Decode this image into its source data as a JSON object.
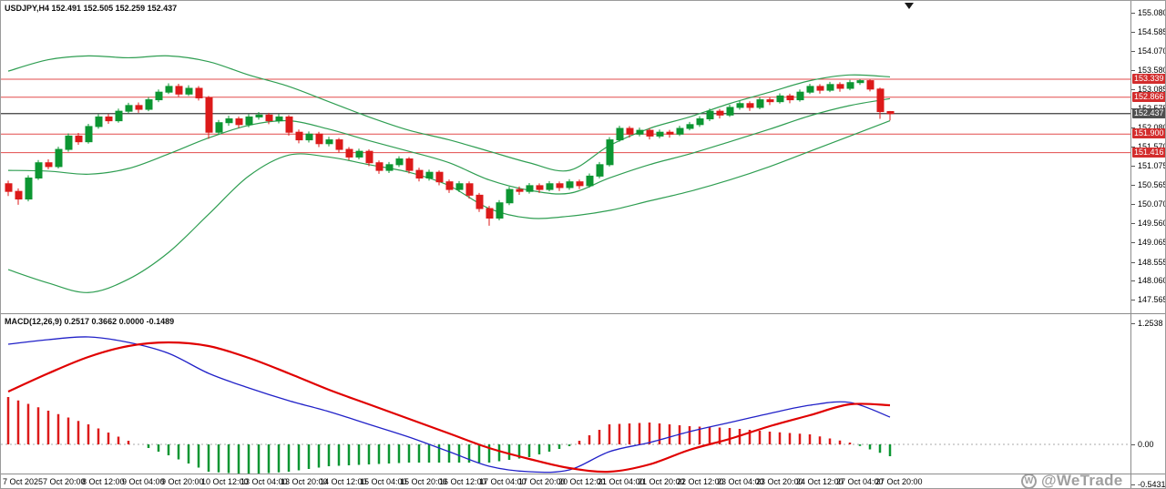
{
  "symbol_bar": {
    "symbol": "USDJPY",
    "timeframe": "H4",
    "open": "152.491",
    "high": "152.505",
    "low": "152.259",
    "close": "152.437",
    "text": "USDJPY,H4 152.491 152.505 152.259 152.437"
  },
  "macd_bar": {
    "indicator": "MACD",
    "params": "12,26,9",
    "values": [
      "0.2517",
      "0.3662",
      "0.0000",
      "-0.1489"
    ],
    "text": "MACD(12,26,9) 0.2517 0.3662 0.0000 -0.1489"
  },
  "watermark": {
    "logo_letter": "W",
    "text": "@WeTrade"
  },
  "colors": {
    "background": "#ffffff",
    "foreground": "#000000",
    "separator": "#8c8c8c",
    "bull": "#0c9632",
    "bear": "#dc1a1a",
    "bollinger": "#2f9e52",
    "level_line": "#e24b4b",
    "level_label_bg": "#d32d2d",
    "current_line": "#3c3c3c",
    "current_label_bg": "#4f4f4f",
    "macd_line": "#2121c8",
    "signal_line": "#e00000",
    "hist_pos": "#dc1a1a",
    "hist_neg": "#0c9632",
    "zero_line": "#aaaaaa",
    "watermark": "#8f8f8f"
  },
  "chart_data": [
    {
      "type": "candlestick",
      "title": "USDJPY,H4",
      "ylim": [
        147.565,
        155.08
      ],
      "y_ticks": [
        "155.080",
        "154.585",
        "154.070",
        "153.580",
        "153.085",
        "152.575",
        "152.080",
        "151.570",
        "151.075",
        "150.565",
        "150.070",
        "149.560",
        "149.065",
        "148.555",
        "148.060",
        "147.565"
      ],
      "x_tick_labels": [
        "7 Oct 2025",
        "7 Oct 20:00",
        "8 Oct 12:00",
        "9 Oct 04:00",
        "9 Oct 20:00",
        "10 Oct 12:00",
        "13 Oct 04:00",
        "13 Oct 20:00",
        "14 Oct 12:00",
        "15 Oct 04:00",
        "15 Oct 20:00",
        "16 Oct 12:00",
        "17 Oct 04:00",
        "17 Oct 20:00",
        "20 Oct 12:00",
        "21 Oct 04:00",
        "21 Oct 20:00",
        "22 Oct 12:00",
        "23 Oct 04:00",
        "23 Oct 20:00",
        "24 Oct 12:00",
        "27 Oct 04:00",
        "27 Oct 20:00"
      ],
      "candles": [
        [
          150.6,
          150.68,
          150.28,
          150.4
        ],
        [
          150.4,
          150.48,
          150.05,
          150.2
        ],
        [
          150.2,
          150.82,
          150.14,
          150.75
        ],
        [
          150.75,
          151.22,
          150.7,
          151.15
        ],
        [
          151.15,
          151.24,
          150.98,
          151.05
        ],
        [
          151.05,
          151.57,
          151.0,
          151.5
        ],
        [
          151.5,
          151.92,
          151.44,
          151.85
        ],
        [
          151.85,
          151.93,
          151.62,
          151.7
        ],
        [
          151.7,
          152.17,
          151.65,
          152.1
        ],
        [
          152.1,
          152.42,
          152.04,
          152.35
        ],
        [
          152.35,
          152.43,
          152.17,
          152.25
        ],
        [
          152.25,
          152.57,
          152.2,
          152.5
        ],
        [
          152.5,
          152.72,
          152.44,
          152.65
        ],
        [
          152.65,
          152.73,
          152.46,
          152.55
        ],
        [
          152.55,
          152.87,
          152.5,
          152.8
        ],
        [
          152.8,
          153.07,
          152.74,
          153.0
        ],
        [
          153.0,
          153.23,
          152.95,
          153.15
        ],
        [
          153.15,
          153.22,
          152.88,
          152.95
        ],
        [
          152.95,
          153.18,
          152.9,
          153.1
        ],
        [
          153.1,
          153.16,
          152.78,
          152.85
        ],
        [
          152.85,
          152.9,
          151.78,
          151.95
        ],
        [
          151.95,
          152.27,
          151.88,
          152.2
        ],
        [
          152.2,
          152.38,
          152.12,
          152.3
        ],
        [
          152.3,
          152.36,
          152.06,
          152.15
        ],
        [
          152.15,
          152.42,
          152.08,
          152.35
        ],
        [
          152.35,
          152.48,
          152.28,
          152.4
        ],
        [
          152.4,
          152.46,
          152.16,
          152.25
        ],
        [
          152.25,
          152.43,
          152.18,
          152.35
        ],
        [
          152.35,
          152.4,
          151.86,
          151.95
        ],
        [
          151.95,
          152.02,
          151.66,
          151.75
        ],
        [
          151.75,
          151.97,
          151.68,
          151.9
        ],
        [
          151.9,
          151.96,
          151.56,
          151.65
        ],
        [
          151.65,
          151.83,
          151.58,
          151.75
        ],
        [
          151.75,
          151.8,
          151.42,
          151.5
        ],
        [
          151.5,
          151.56,
          151.22,
          151.3
        ],
        [
          151.3,
          151.52,
          151.24,
          151.45
        ],
        [
          151.45,
          151.5,
          151.06,
          151.15
        ],
        [
          151.15,
          151.21,
          150.86,
          150.95
        ],
        [
          150.95,
          151.17,
          150.88,
          151.1
        ],
        [
          151.1,
          151.32,
          151.04,
          151.25
        ],
        [
          151.25,
          151.3,
          150.87,
          150.95
        ],
        [
          150.95,
          151.02,
          150.66,
          150.75
        ],
        [
          150.75,
          150.97,
          150.68,
          150.9
        ],
        [
          150.9,
          150.95,
          150.56,
          150.65
        ],
        [
          150.65,
          150.71,
          150.36,
          150.45
        ],
        [
          150.45,
          150.67,
          150.38,
          150.6
        ],
        [
          150.6,
          150.66,
          150.21,
          150.3
        ],
        [
          150.3,
          150.36,
          149.86,
          149.95
        ],
        [
          149.95,
          150.02,
          149.5,
          149.7
        ],
        [
          149.7,
          150.17,
          149.64,
          150.1
        ],
        [
          150.1,
          150.52,
          150.04,
          150.45
        ],
        [
          150.45,
          150.53,
          150.31,
          150.4
        ],
        [
          150.4,
          150.62,
          150.34,
          150.55
        ],
        [
          150.55,
          150.61,
          150.36,
          150.45
        ],
        [
          150.45,
          150.67,
          150.4,
          150.6
        ],
        [
          150.6,
          150.66,
          150.41,
          150.5
        ],
        [
          150.5,
          150.72,
          150.44,
          150.65
        ],
        [
          150.65,
          150.71,
          150.46,
          150.55
        ],
        [
          150.55,
          150.87,
          150.5,
          150.8
        ],
        [
          150.8,
          151.17,
          150.74,
          151.1
        ],
        [
          151.1,
          151.82,
          151.05,
          151.75
        ],
        [
          151.75,
          152.12,
          151.7,
          152.05
        ],
        [
          152.05,
          152.11,
          151.81,
          151.9
        ],
        [
          151.9,
          152.07,
          151.84,
          152.0
        ],
        [
          152.0,
          152.06,
          151.76,
          151.85
        ],
        [
          151.85,
          152.02,
          151.79,
          151.95
        ],
        [
          151.95,
          152.01,
          151.81,
          151.9
        ],
        [
          151.9,
          152.12,
          151.85,
          152.05
        ],
        [
          152.05,
          152.22,
          152.0,
          152.15
        ],
        [
          152.15,
          152.37,
          152.09,
          152.3
        ],
        [
          152.3,
          152.57,
          152.24,
          152.5
        ],
        [
          152.5,
          152.56,
          152.31,
          152.4
        ],
        [
          152.4,
          152.67,
          152.35,
          152.6
        ],
        [
          152.6,
          152.77,
          152.54,
          152.7
        ],
        [
          152.7,
          152.76,
          152.51,
          152.6
        ],
        [
          152.6,
          152.87,
          152.55,
          152.8
        ],
        [
          152.8,
          152.86,
          152.66,
          152.75
        ],
        [
          152.75,
          152.97,
          152.7,
          152.9
        ],
        [
          152.9,
          152.96,
          152.71,
          152.8
        ],
        [
          152.8,
          153.07,
          152.75,
          153.0
        ],
        [
          153.0,
          153.22,
          152.95,
          153.15
        ],
        [
          153.15,
          153.21,
          152.96,
          153.05
        ],
        [
          153.05,
          153.27,
          153.0,
          153.2
        ],
        [
          153.2,
          153.26,
          153.01,
          153.1
        ],
        [
          153.1,
          153.32,
          153.05,
          153.25
        ],
        [
          153.25,
          153.34,
          153.19,
          153.3
        ],
        [
          153.3,
          153.33,
          153.02,
          153.08
        ],
        [
          153.08,
          153.12,
          152.3,
          152.49
        ],
        [
          152.491,
          152.505,
          152.259,
          152.437
        ]
      ],
      "overlays": {
        "bollinger_bands": {
          "sample_step": 4,
          "upper": [
            153.55,
            153.85,
            153.95,
            153.9,
            153.95,
            153.8,
            153.45,
            153.15,
            152.75,
            152.35,
            152.0,
            151.75,
            151.45,
            151.15,
            150.95,
            151.6,
            152.05,
            152.35,
            152.7,
            153.0,
            153.3,
            153.45,
            153.4
          ],
          "middle": [
            150.95,
            150.93,
            150.85,
            151.0,
            151.38,
            151.8,
            152.13,
            152.25,
            152.03,
            151.73,
            151.45,
            151.15,
            150.7,
            150.43,
            150.35,
            150.75,
            151.1,
            151.38,
            151.7,
            152.03,
            152.38,
            152.65,
            152.83
          ],
          "lower": [
            148.35,
            148.0,
            147.75,
            148.1,
            148.8,
            149.8,
            150.8,
            151.35,
            151.3,
            151.1,
            150.9,
            150.55,
            149.95,
            149.7,
            149.75,
            149.9,
            150.15,
            150.4,
            150.7,
            151.05,
            151.45,
            151.85,
            152.25
          ]
        },
        "horizontal_levels": {
          "values": [
            153.339,
            152.866,
            151.9,
            151.416
          ],
          "labels": [
            "153.339",
            "152.866",
            "151.900",
            "151.416"
          ]
        },
        "current_price_line": {
          "value": 152.437,
          "label": "152.437"
        }
      }
    },
    {
      "type": "macd",
      "title": "MACD(12,26,9)",
      "ylim": [
        -0.5431,
        1.2538
      ],
      "y_ticks": [
        "1.2538",
        "0.00",
        "-0.5431"
      ],
      "sample_step": 4,
      "macd_line": [
        1.1,
        1.15,
        1.18,
        1.12,
        1.0,
        0.78,
        0.62,
        0.48,
        0.36,
        0.22,
        0.08,
        -0.08,
        -0.24,
        -0.3,
        -0.28,
        -0.08,
        0.02,
        0.14,
        0.24,
        0.34,
        0.43,
        0.46,
        0.3
      ],
      "signal_line": [
        0.58,
        0.78,
        0.96,
        1.08,
        1.12,
        1.08,
        0.95,
        0.78,
        0.6,
        0.44,
        0.28,
        0.12,
        -0.04,
        -0.16,
        -0.26,
        -0.3,
        -0.22,
        -0.06,
        0.06,
        0.2,
        0.32,
        0.44,
        0.43
      ],
      "histogram_formula": "macd_line - signal_line (interpolated per candle)"
    }
  ]
}
